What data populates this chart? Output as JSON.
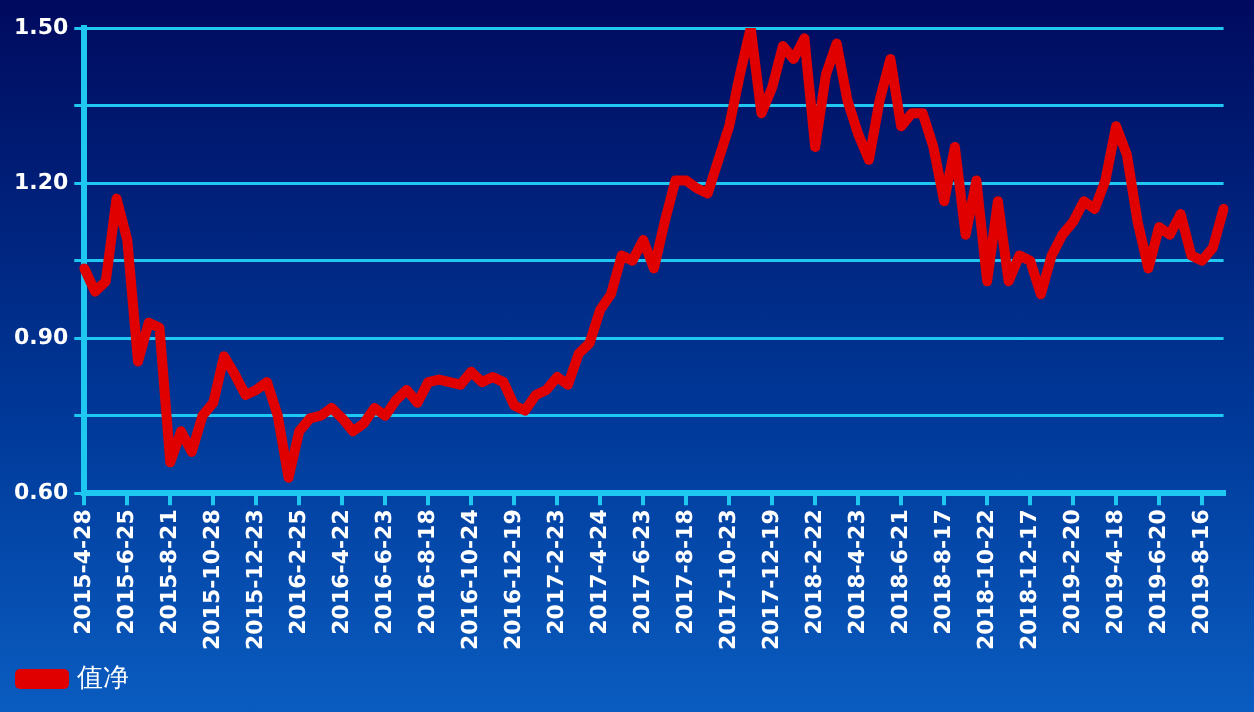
{
  "chart_data": {
    "type": "line",
    "categories": [
      "2015-4-28",
      null,
      null,
      null,
      "2015-6-25",
      null,
      null,
      null,
      "2015-8-21",
      null,
      null,
      null,
      "2015-10-28",
      null,
      null,
      null,
      "2015-12-23",
      null,
      null,
      null,
      "2016-2-25",
      null,
      null,
      null,
      "2016-4-22",
      null,
      null,
      null,
      "2016-6-23",
      null,
      null,
      null,
      "2016-8-18",
      null,
      null,
      null,
      "2016-10-24",
      null,
      null,
      null,
      "2016-12-19",
      null,
      null,
      null,
      "2017-2-23",
      null,
      null,
      null,
      "2017-4-24",
      null,
      null,
      null,
      "2017-6-23",
      null,
      null,
      null,
      "2017-8-18",
      null,
      null,
      null,
      "2017-10-23",
      null,
      null,
      null,
      "2017-12-19",
      null,
      null,
      null,
      "2018-2-22",
      null,
      null,
      null,
      "2018-4-23",
      null,
      null,
      null,
      "2018-6-21",
      null,
      null,
      null,
      "2018-8-17",
      null,
      null,
      null,
      "2018-10-22",
      null,
      null,
      null,
      "2018-12-17",
      null,
      null,
      null,
      "2019-2-20",
      null,
      null,
      null,
      "2019-4-18",
      null,
      null,
      null,
      "2019-6-20",
      null,
      null,
      null,
      "2019-8-16",
      null,
      null
    ],
    "series": [
      {
        "name": "值净",
        "color": "#e00000",
        "values": [
          1.035,
          0.99,
          1.01,
          1.17,
          1.09,
          0.855,
          0.93,
          0.92,
          0.66,
          0.72,
          0.68,
          0.75,
          0.775,
          0.865,
          0.83,
          0.79,
          0.8,
          0.815,
          0.75,
          0.63,
          0.72,
          0.745,
          0.75,
          0.765,
          0.745,
          0.72,
          0.735,
          0.765,
          0.75,
          0.78,
          0.8,
          0.775,
          0.815,
          0.82,
          0.815,
          0.81,
          0.835,
          0.815,
          0.825,
          0.815,
          0.77,
          0.76,
          0.79,
          0.8,
          0.825,
          0.81,
          0.87,
          0.89,
          0.955,
          0.985,
          1.06,
          1.05,
          1.09,
          1.035,
          1.125,
          1.205,
          1.205,
          1.19,
          1.18,
          1.245,
          1.31,
          1.41,
          1.5,
          1.335,
          1.385,
          1.465,
          1.44,
          1.48,
          1.27,
          1.41,
          1.47,
          1.36,
          1.295,
          1.245,
          1.36,
          1.44,
          1.31,
          1.335,
          1.335,
          1.27,
          1.165,
          1.27,
          1.1,
          1.205,
          1.01,
          1.165,
          1.01,
          1.06,
          1.05,
          0.985,
          1.06,
          1.1,
          1.125,
          1.165,
          1.15,
          1.205,
          1.31,
          1.255,
          1.125,
          1.035,
          1.115,
          1.1,
          1.14,
          1.06,
          1.05,
          1.075,
          1.15
        ]
      }
    ],
    "ylim": [
      0.6,
      1.5
    ],
    "yticks": [
      {
        "value": 0.6,
        "label": "0.60"
      },
      {
        "value": 0.75,
        "label": null
      },
      {
        "value": 0.9,
        "label": "0.90"
      },
      {
        "value": 1.05,
        "label": null
      },
      {
        "value": 1.2,
        "label": "1.20"
      },
      {
        "value": 1.35,
        "label": null
      },
      {
        "value": 1.5,
        "label": "1.50"
      }
    ],
    "grid": "y",
    "legend": "bottom left",
    "marker": "none",
    "line_style": "solid"
  }
}
